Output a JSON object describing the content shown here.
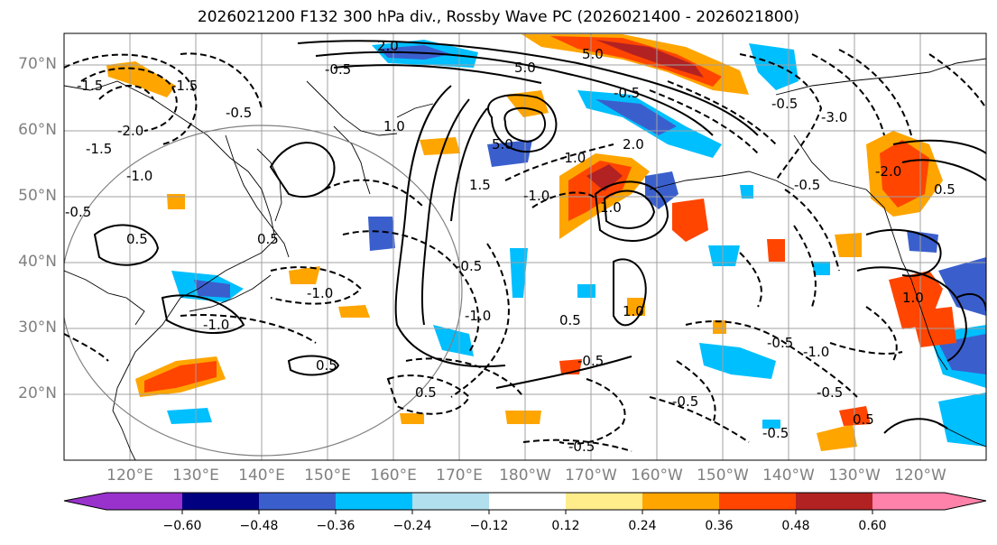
{
  "title": "2026021200 F132 300 hPa div., Rossby Wave PC (2026021400 - 2026021800)",
  "latitude_labels": [
    "70°N",
    "60°N",
    "50°N",
    "40°N",
    "30°N",
    "20°N"
  ],
  "longitude_labels": [
    "120°E",
    "130°E",
    "140°E",
    "150°E",
    "160°E",
    "170°E",
    "180°W",
    "170°W",
    "160°W",
    "150°W",
    "140°W",
    "130°W",
    "120°W"
  ],
  "colorbar": {
    "tick_labels": [
      "−0.60",
      "−0.48",
      "−0.36",
      "−0.24",
      "−0.12",
      "0.12",
      "0.24",
      "0.36",
      "0.48",
      "0.60"
    ],
    "colors": [
      "#9932cc",
      "#000080",
      "#3a5fcd",
      "#00bfff",
      "#b2dfee",
      "#ffffff",
      "#ffec8b",
      "#ffa500",
      "#ff4500",
      "#b22222",
      "#ff82ab"
    ]
  },
  "contour_labels": [
    "2.0",
    "5.0",
    "5.0",
    "5.0",
    "-1.5",
    "-0.5",
    "-1.5",
    "-2.0",
    "-0.5",
    "-1.5",
    "-1.0",
    "1.0",
    "0.5",
    "-0.5",
    "-1.0",
    "0.5",
    "1.5",
    "-1.0",
    "0.5",
    "-1.0",
    "-0.5",
    "0.5",
    "-0.5",
    "-1.0",
    "-0.5",
    "1.0",
    "2.0",
    "-1.0",
    "1.0",
    "0.5",
    "-0.5",
    "-0.5",
    "-0.5",
    "-1.0",
    "-0.5",
    "-0.5",
    "-3.0",
    "-2.0",
    "0.5",
    "1.0",
    "-0.5",
    "-0.5",
    "0.5"
  ]
}
